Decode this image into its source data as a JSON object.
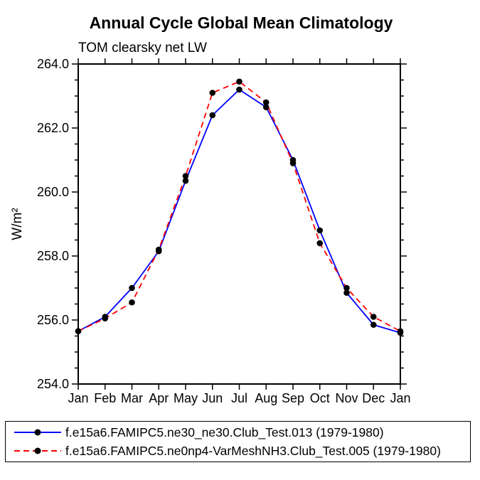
{
  "title": "Annual Cycle Global Mean Climatology",
  "subtitle": "TOM clearsky net LW",
  "ylabel": "W/m²",
  "chart_data": {
    "type": "line",
    "x_categories": [
      "Jan",
      "Feb",
      "Mar",
      "Apr",
      "May",
      "Jun",
      "Jul",
      "Aug",
      "Sep",
      "Oct",
      "Nov",
      "Dec",
      "Jan"
    ],
    "ylim": [
      254.0,
      264.0
    ],
    "y_major_tick_step": 2.0,
    "y_minor_tick_step": 0.5,
    "y_tick_format_decimals": 1,
    "grid": false,
    "legend_position": "bottom-box",
    "marker_color": "#000000",
    "series": [
      {
        "name": "f.e15a6.FAMIPC5.ne30_ne30.Club_Test.013 (1979-1980)",
        "color": "#0000ff",
        "style": "solid",
        "marker": "filled-circle",
        "values": [
          255.65,
          256.1,
          257.0,
          258.15,
          260.35,
          262.4,
          263.2,
          262.65,
          261.0,
          258.8,
          256.85,
          255.85,
          255.6
        ]
      },
      {
        "name": "f.e15a6.FAMIPC5.ne0np4-VarMeshNH3.Club_Test.005 (1979-1980)",
        "color": "#ff0000",
        "style": "dashed",
        "marker": "filled-circle",
        "values": [
          255.65,
          256.05,
          256.55,
          258.2,
          260.5,
          263.1,
          263.45,
          262.8,
          260.9,
          258.4,
          257.0,
          256.1,
          255.65
        ]
      }
    ]
  }
}
